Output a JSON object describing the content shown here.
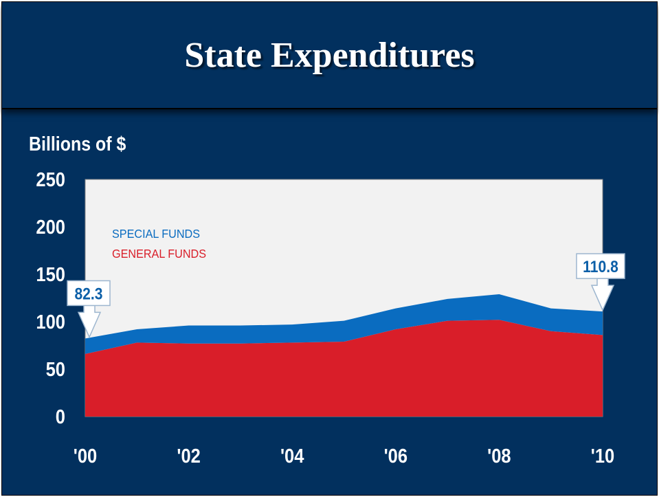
{
  "title": "State Expenditures",
  "colors": {
    "background": "#02305e",
    "plot_area": "#f2f2f2",
    "special": "#0a6cc0",
    "general": "#d91e29",
    "callout_text": "#0b5fa8"
  },
  "chart_data": {
    "type": "area",
    "stacked": true,
    "title": "State Expenditures",
    "ylabel": "Billions of $",
    "xlabel": "",
    "ylim": [
      0,
      250
    ],
    "xlim": [
      2000,
      2010
    ],
    "y_ticks": [
      "250",
      "200",
      "150",
      "100",
      "50",
      "0"
    ],
    "y_tick_values": [
      250,
      200,
      150,
      100,
      50,
      0
    ],
    "x_ticks": [
      "'00",
      "'02",
      "'04",
      "'06",
      "'08",
      "'10"
    ],
    "x_tick_values": [
      2000,
      2002,
      2004,
      2006,
      2008,
      2010
    ],
    "grid": false,
    "legend_position": "top-left",
    "x": [
      2000,
      2001,
      2002,
      2003,
      2004,
      2005,
      2006,
      2007,
      2008,
      2009,
      2010
    ],
    "series": [
      {
        "name": "GENERAL FUNDS",
        "color": "#d91e29",
        "values": [
          66,
          78,
          77,
          77,
          78,
          79,
          92,
          101,
          102,
          90,
          86
        ]
      },
      {
        "name": "SPECIAL FUNDS",
        "color": "#0a6cc0",
        "values": [
          16.3,
          14,
          19,
          19,
          19,
          22,
          22,
          23,
          27,
          24,
          24.8
        ]
      }
    ],
    "totals": [
      82.3,
      92,
      96,
      96,
      97,
      101,
      114,
      124,
      129,
      114,
      110.8
    ],
    "annotations": [
      {
        "x": 2000,
        "y": 82.3,
        "text": "82.3"
      },
      {
        "x": 2010,
        "y": 110.8,
        "text": "110.8"
      }
    ]
  }
}
